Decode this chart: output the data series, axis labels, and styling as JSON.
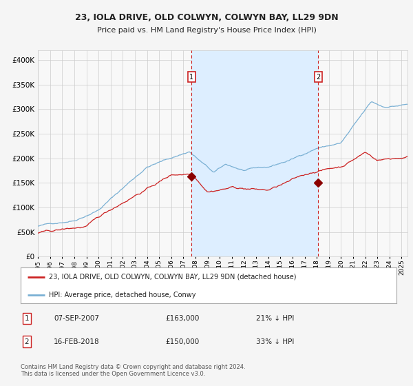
{
  "title": "23, IOLA DRIVE, OLD COLWYN, COLWYN BAY, LL29 9DN",
  "subtitle": "Price paid vs. HM Land Registry's House Price Index (HPI)",
  "legend_line1": "23, IOLA DRIVE, OLD COLWYN, COLWYN BAY, LL29 9DN (detached house)",
  "legend_line2": "HPI: Average price, detached house, Conwy",
  "annotation1_date": "07-SEP-2007",
  "annotation1_price": "£163,000",
  "annotation1_hpi": "21% ↓ HPI",
  "annotation2_date": "16-FEB-2018",
  "annotation2_price": "£150,000",
  "annotation2_hpi": "33% ↓ HPI",
  "footer": "Contains HM Land Registry data © Crown copyright and database right 2024.\nThis data is licensed under the Open Government Licence v3.0.",
  "hpi_line_color": "#7ab0d4",
  "price_color": "#cc2222",
  "vline_color": "#cc2222",
  "shade_color": "#ddeeff",
  "background_color": "#f5f5f5",
  "plot_bg_color": "#f8f8f8",
  "grid_color": "#cccccc",
  "ylim": [
    0,
    420000
  ],
  "yticks": [
    0,
    50000,
    100000,
    150000,
    200000,
    250000,
    300000,
    350000,
    400000
  ],
  "event1_year": 2007.67,
  "event1_price": 163000,
  "event2_year": 2018.12,
  "event2_price": 150000
}
